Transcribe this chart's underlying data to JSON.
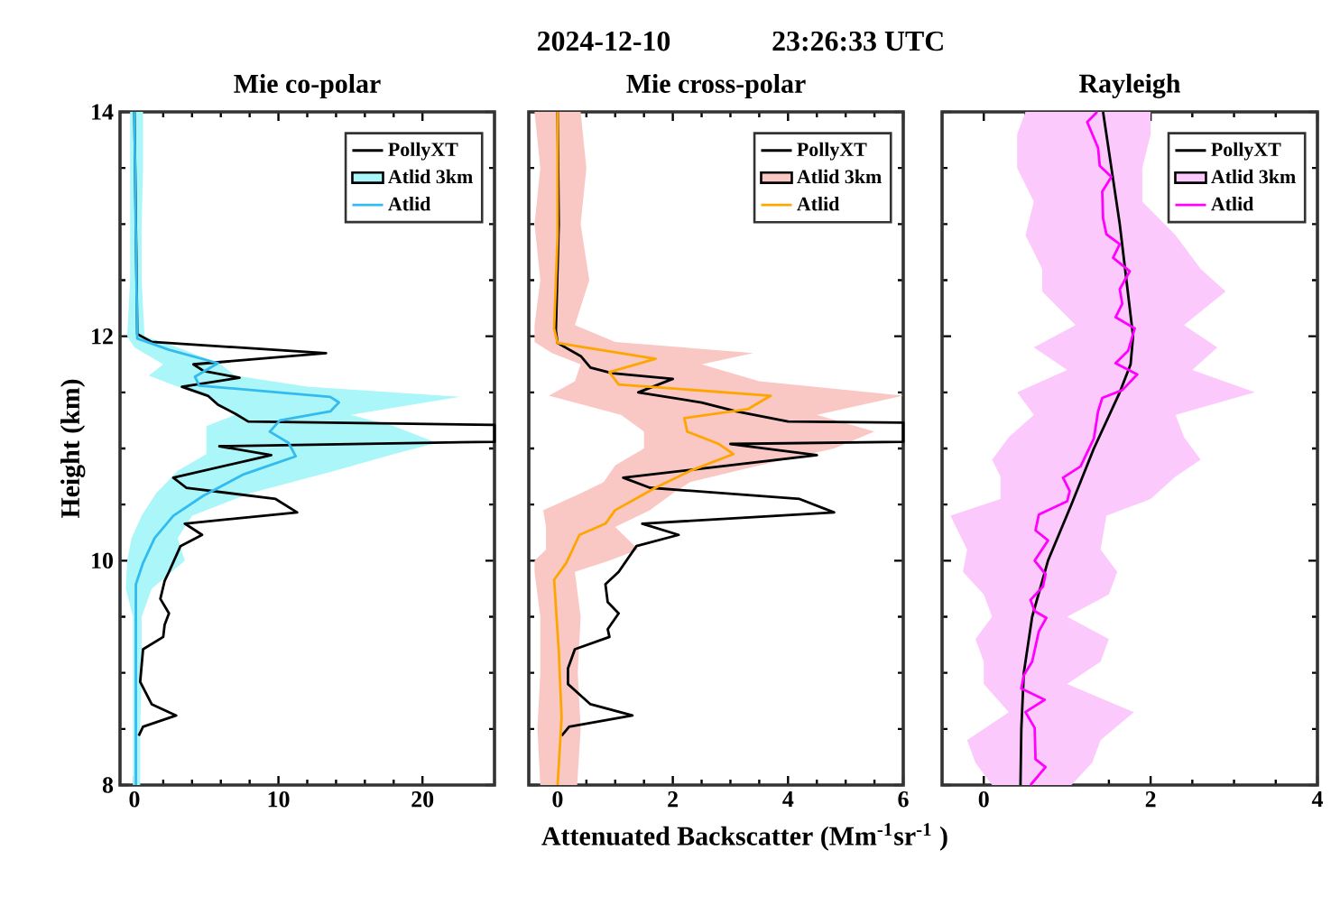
{
  "chart_data": [
    {
      "type": "line",
      "title": "Mie co-polar",
      "ylabel": "Height (km)",
      "orientation": "horizontal",
      "legend": "top right",
      "xlim": [
        -1,
        25
      ],
      "xticks": [
        0,
        10,
        20
      ],
      "ylim": [
        8,
        14
      ],
      "yticks": [
        8,
        10,
        12,
        14
      ],
      "series": [
        {
          "name": "PollyXT",
          "color": "#000000",
          "x": [
            8.44,
            8.52,
            8.62,
            8.72,
            8.92,
            9.21,
            9.32,
            9.43,
            9.53,
            9.66,
            9.82,
            9.9,
            10.13,
            10.23,
            10.33,
            10.43,
            10.55,
            10.65,
            10.74,
            10.94,
            11.02,
            11.06,
            11.21,
            11.24,
            11.31,
            11.39,
            11.47,
            11.55,
            11.63,
            11.69,
            11.75,
            11.85,
            11.95,
            12.02,
            13,
            14
          ],
          "values": [
            0.3,
            0.6,
            2.9,
            1.2,
            0.4,
            0.6,
            2.0,
            2.1,
            2.4,
            1.8,
            2.1,
            2.4,
            3.2,
            4.7,
            3.5,
            11.3,
            9.8,
            3.6,
            2.7,
            9.5,
            5.9,
            25,
            25,
            7.9,
            7.0,
            5.8,
            5.1,
            3.3,
            7.3,
            4.8,
            4.1,
            13.3,
            1.2,
            0.2,
            0.1,
            0
          ]
        },
        {
          "name": "Atlid 3km",
          "type": "area",
          "color": "#aaf6f9",
          "x": [
            8,
            8.5,
            9,
            9.5,
            9.75,
            10,
            10.2,
            10.4,
            10.6,
            10.8,
            10.95,
            11.05,
            11.2,
            11.3,
            11.46,
            11.55,
            11.65,
            11.75,
            11.9,
            12,
            12.5,
            13,
            13.5,
            14,
            14,
            12.5,
            12,
            11.9,
            11.75,
            11.65,
            11.55,
            11.46,
            11.3,
            11.2,
            10.95,
            10.8,
            10.6,
            10.4,
            10.2,
            10,
            9.75,
            9.5,
            8
          ],
          "values": [
            0.4,
            0.4,
            0.5,
            0.5,
            1.2,
            3.5,
            3,
            4,
            8,
            13.9,
            18,
            21,
            18,
            15,
            22.6,
            12,
            7,
            6,
            3,
            0.7,
            0.5,
            0.5,
            0.6,
            0.6,
            -0.3,
            -0.3,
            -0.5,
            0,
            2,
            1,
            3,
            5,
            7,
            5,
            5,
            3,
            1.5,
            0.5,
            -0.2,
            -0.5,
            -0.6,
            -0.1,
            -0.1
          ]
        },
        {
          "name": "Atlid",
          "color": "#33bbf0",
          "x": [
            8,
            9,
            9.79,
            9.98,
            10.2,
            10.4,
            10.58,
            10.77,
            10.93,
            11.05,
            11.15,
            11.25,
            11.33,
            11.41,
            11.46,
            11.56,
            11.64,
            11.76,
            11.88,
            11.98,
            12.9,
            14
          ],
          "values": [
            0.1,
            0.1,
            0.1,
            0.6,
            1.4,
            2.7,
            4.8,
            7.6,
            11.2,
            10.7,
            9.4,
            10.1,
            13.6,
            14.2,
            13.6,
            4.5,
            4.2,
            5.8,
            2.4,
            0.2,
            0.1,
            0
          ]
        }
      ]
    },
    {
      "type": "line",
      "title": "Mie cross-polar",
      "xlabel": "Attenuated Backscatter (Mm$^{-1}$sr$^{-1}$ )",
      "annotations": [
        "2024-12-10",
        "23:26:33 UTC"
      ],
      "orientation": "horizontal",
      "legend": "top right",
      "tick_labels": "x",
      "xlim": [
        -0.5,
        6
      ],
      "xticks": [
        0,
        2,
        4,
        6
      ],
      "ylim": [
        8,
        14
      ],
      "yticks": [
        8,
        10,
        12,
        14
      ],
      "series": [
        {
          "name": "PollyXT",
          "color": "#000000",
          "x": [
            8.44,
            8.52,
            8.62,
            8.72,
            8.9,
            9.04,
            9.21,
            9.32,
            9.39,
            9.53,
            9.63,
            9.79,
            9.9,
            10.13,
            10.23,
            10.33,
            10.43,
            10.55,
            10.65,
            10.74,
            10.94,
            11.04,
            11.06,
            11.23,
            11.24,
            11.33,
            11.41,
            11.5,
            11.62,
            11.67,
            11.72,
            11.82,
            11.94,
            12.05,
            13,
            14
          ],
          "values": [
            0.07,
            0.2,
            1.3,
            0.57,
            0.18,
            0.18,
            0.3,
            0.9,
            0.87,
            1.06,
            0.87,
            0.83,
            1.06,
            1.37,
            2.1,
            1.47,
            4.8,
            4.2,
            1.6,
            1.14,
            4.5,
            3.0,
            6,
            6,
            4.0,
            3.1,
            2.5,
            1.4,
            2.0,
            0.95,
            0.57,
            0.41,
            0,
            -0.03,
            0.02,
            0
          ]
        },
        {
          "name": "Atlid 3km",
          "type": "area",
          "color": "#f9c8c5",
          "x": [
            8,
            8.5,
            9,
            9.5,
            9.9,
            10,
            10.1,
            10.3,
            10.45,
            10.6,
            10.7,
            10.85,
            11,
            11.15,
            11.3,
            11.47,
            11.6,
            11.75,
            11.85,
            11.95,
            12.1,
            12.5,
            13,
            13.5,
            14,
            14,
            13.5,
            13,
            12.5,
            12.1,
            11.95,
            11.85,
            11.75,
            11.6,
            11.47,
            11.3,
            11.15,
            11,
            10.85,
            10.7,
            10.6,
            10.45,
            10.3,
            10.1,
            10,
            9.9,
            9.5,
            9,
            8.5,
            8
          ],
          "values": [
            0.34,
            0.4,
            0.35,
            0.4,
            0.3,
            0.9,
            1.4,
            1.0,
            1.6,
            2.0,
            2.3,
            3.5,
            4.8,
            5.5,
            4.5,
            6,
            3.5,
            2.5,
            3.4,
            1.0,
            0.3,
            0.55,
            0.4,
            0.5,
            0.4,
            -0.4,
            -0.3,
            -0.4,
            -0.3,
            -0.4,
            -0.4,
            -0.1,
            0.4,
            0.3,
            -0.15,
            1.1,
            1.5,
            1.5,
            1.0,
            0.8,
            0.4,
            -0.25,
            -0.2,
            -0.2,
            -0.4,
            -0.4,
            -0.3,
            -0.3,
            -0.35,
            -0.3
          ]
        },
        {
          "name": "Atlid",
          "color": "#ffa500",
          "x": [
            8,
            8.6,
            9.2,
            9.83,
            9.98,
            10.23,
            10.33,
            10.45,
            10.65,
            10.8,
            10.95,
            11.04,
            11.15,
            11.27,
            11.35,
            11.47,
            11.57,
            11.68,
            11.8,
            11.94,
            12.07,
            12.9,
            14
          ],
          "values": [
            0,
            0.07,
            0.02,
            -0.06,
            0.15,
            0.38,
            0.83,
            1.0,
            1.7,
            2.3,
            3.05,
            2.8,
            2.25,
            2.2,
            3.3,
            3.7,
            1.06,
            0.9,
            1.7,
            0,
            -0.06,
            0,
            0
          ]
        }
      ]
    },
    {
      "type": "line",
      "title": "Rayleigh",
      "orientation": "horizontal",
      "legend": "top right",
      "tick_labels": "x",
      "xlim": [
        -0.5,
        4
      ],
      "xticks": [
        0,
        2,
        4
      ],
      "ylim": [
        8,
        14
      ],
      "yticks": [
        8,
        10,
        12,
        14
      ],
      "series": [
        {
          "name": "PollyXT",
          "color": "#000000",
          "x": [
            8,
            8.5,
            9,
            9.5,
            10,
            10.5,
            11,
            11.5,
            11.75,
            12,
            12.5,
            13,
            13.5,
            14
          ],
          "values": [
            0.44,
            0.45,
            0.48,
            0.58,
            0.77,
            1.05,
            1.32,
            1.63,
            1.76,
            1.79,
            1.71,
            1.63,
            1.53,
            1.43
          ]
        },
        {
          "name": "Atlid 3km",
          "type": "area",
          "color": "#fcc9fc",
          "x": [
            8.0,
            8.2,
            8.4,
            8.65,
            8.9,
            9.1,
            9.3,
            9.5,
            9.7,
            9.9,
            10.1,
            10.4,
            10.55,
            10.75,
            10.9,
            11.1,
            11.3,
            11.5,
            11.7,
            11.9,
            12.1,
            12.4,
            12.6,
            12.9,
            13.2,
            13.5,
            13.8,
            14,
            14,
            13.8,
            13.5,
            13.2,
            12.9,
            12.6,
            12.4,
            12.1,
            11.9,
            11.7,
            11.5,
            11.3,
            11.1,
            10.9,
            10.75,
            10.55,
            10.4,
            10.1,
            9.9,
            9.7,
            9.5,
            9.3,
            9.1,
            8.9,
            8.65,
            8.4,
            8.2,
            8.0
          ],
          "values": [
            1.05,
            1.3,
            1.4,
            1.8,
            1.0,
            1.4,
            1.5,
            1.0,
            1.5,
            1.6,
            1.4,
            1.47,
            2.0,
            2.3,
            2.6,
            2.4,
            2.3,
            3.25,
            2.5,
            2.8,
            2.4,
            2.9,
            2.6,
            2.3,
            1.9,
            1.9,
            2.0,
            2.0,
            0.5,
            0.4,
            0.4,
            0.6,
            0.5,
            0.7,
            0.7,
            1.1,
            0.6,
            1.0,
            0.4,
            0.6,
            0.3,
            0.1,
            0.2,
            0.2,
            -0.4,
            -0.2,
            -0.25,
            0.0,
            0.1,
            -0.1,
            0.0,
            0.0,
            0.3,
            -0.2,
            -0.1,
            0.1
          ]
        },
        {
          "name": "Atlid",
          "color": "#ff00ff",
          "x": [
            8.0,
            8.16,
            8.23,
            8.51,
            8.65,
            8.76,
            8.86,
            8.98,
            9.1,
            9.37,
            9.49,
            9.55,
            9.65,
            9.77,
            9.88,
            10.0,
            10.18,
            10.27,
            10.41,
            10.53,
            10.62,
            10.74,
            10.84,
            11.09,
            11.33,
            11.45,
            11.52,
            11.66,
            11.76,
            11.87,
            12.07,
            12.17,
            12.29,
            12.42,
            12.58,
            12.7,
            12.82,
            12.91,
            13.05,
            13.29,
            13.42,
            13.52,
            13.68,
            13.91,
            14.0
          ],
          "values": [
            0.56,
            0.74,
            0.62,
            0.61,
            0.5,
            0.73,
            0.45,
            0.48,
            0.58,
            0.66,
            0.75,
            0.61,
            0.56,
            0.71,
            0.74,
            0.61,
            0.77,
            0.62,
            0.66,
            1.0,
            1.03,
            0.95,
            1.16,
            1.32,
            1.37,
            1.42,
            1.66,
            1.84,
            1.58,
            1.73,
            1.81,
            1.58,
            1.66,
            1.63,
            1.75,
            1.55,
            1.63,
            1.47,
            1.43,
            1.42,
            1.53,
            1.39,
            1.37,
            1.24,
            1.36
          ]
        }
      ]
    }
  ]
}
